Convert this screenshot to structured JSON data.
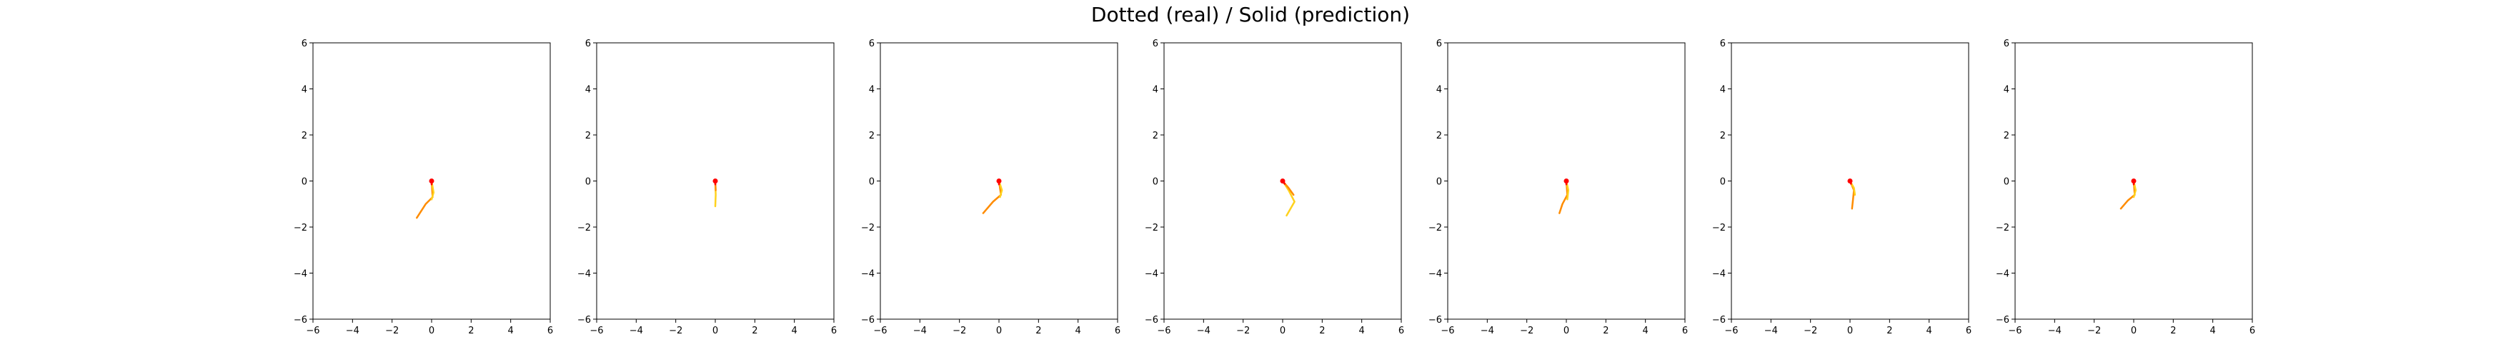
{
  "figure": {
    "suptitle": "Dotted (real) / Solid (prediction)"
  },
  "axes_defaults": {
    "xlim": [
      -6,
      6
    ],
    "ylim": [
      -6,
      6
    ],
    "xticks": [
      -6,
      -4,
      -2,
      0,
      2,
      4,
      6
    ],
    "yticks": [
      -6,
      -4,
      -2,
      0,
      2,
      4,
      6
    ],
    "grid": false
  },
  "chart_data": [
    {
      "type": "line",
      "xlim": [
        -6,
        6
      ],
      "ylim": [
        -6,
        6
      ],
      "series": [
        {
          "style": "solid",
          "color": "#ff8c00",
          "x": [
            0.0,
            0.05,
            -0.3,
            -0.75
          ],
          "y": [
            0.0,
            -0.7,
            -1.0,
            -1.6
          ]
        },
        {
          "style": "solid",
          "color": "#ffd21e",
          "x": [
            0.0,
            0.1,
            0.0
          ],
          "y": [
            0.0,
            -0.5,
            -0.8
          ]
        },
        {
          "style": "solid",
          "color": "#ff0000",
          "x": [
            0.0,
            0.0
          ],
          "y": [
            0.0,
            -0.15
          ]
        }
      ]
    },
    {
      "type": "line",
      "xlim": [
        -6,
        6
      ],
      "ylim": [
        -6,
        6
      ],
      "series": [
        {
          "style": "solid",
          "color": "#ffd21e",
          "x": [
            0.0,
            0.02,
            0.0
          ],
          "y": [
            0.0,
            -0.6,
            -1.1
          ]
        },
        {
          "style": "solid",
          "color": "#ff8c00",
          "x": [
            0.0,
            0.02
          ],
          "y": [
            0.0,
            -0.4
          ]
        },
        {
          "style": "solid",
          "color": "#ff0000",
          "x": [
            0.0,
            0.0
          ],
          "y": [
            0.0,
            -0.15
          ]
        }
      ]
    },
    {
      "type": "line",
      "xlim": [
        -6,
        6
      ],
      "ylim": [
        -6,
        6
      ],
      "series": [
        {
          "style": "solid",
          "color": "#ff8c00",
          "x": [
            0.0,
            0.1,
            -0.3,
            -0.8
          ],
          "y": [
            0.0,
            -0.6,
            -0.9,
            -1.4
          ]
        },
        {
          "style": "solid",
          "color": "#ffd21e",
          "x": [
            0.0,
            0.15,
            0.05
          ],
          "y": [
            0.0,
            -0.4,
            -0.7
          ]
        },
        {
          "style": "solid",
          "color": "#ff0000",
          "x": [
            0.0,
            0.0
          ],
          "y": [
            0.0,
            -0.15
          ]
        }
      ]
    },
    {
      "type": "line",
      "xlim": [
        -6,
        6
      ],
      "ylim": [
        -6,
        6
      ],
      "series": [
        {
          "style": "solid",
          "color": "#ffd21e",
          "x": [
            0.0,
            0.3,
            0.6,
            0.2
          ],
          "y": [
            0.0,
            -0.4,
            -0.9,
            -1.5
          ]
        },
        {
          "style": "solid",
          "color": "#ff8c00",
          "x": [
            0.0,
            0.3,
            0.55
          ],
          "y": [
            0.0,
            -0.3,
            -0.6
          ]
        },
        {
          "style": "solid",
          "color": "#ff0000",
          "x": [
            0.0,
            0.1
          ],
          "y": [
            0.0,
            -0.12
          ]
        }
      ]
    },
    {
      "type": "line",
      "xlim": [
        -6,
        6
      ],
      "ylim": [
        -6,
        6
      ],
      "series": [
        {
          "style": "solid",
          "color": "#ff8c00",
          "x": [
            0.0,
            0.05,
            -0.2,
            -0.35
          ],
          "y": [
            0.0,
            -0.6,
            -1.0,
            -1.4
          ]
        },
        {
          "style": "solid",
          "color": "#ffd21e",
          "x": [
            0.0,
            0.1,
            0.05
          ],
          "y": [
            0.0,
            -0.4,
            -0.8
          ]
        },
        {
          "style": "solid",
          "color": "#ff0000",
          "x": [
            0.0,
            0.0
          ],
          "y": [
            0.0,
            -0.15
          ]
        }
      ]
    },
    {
      "type": "line",
      "xlim": [
        -6,
        6
      ],
      "ylim": [
        -6,
        6
      ],
      "series": [
        {
          "style": "solid",
          "color": "#ff8c00",
          "x": [
            0.0,
            0.2,
            0.15,
            0.1
          ],
          "y": [
            0.0,
            -0.4,
            -0.8,
            -1.2
          ]
        },
        {
          "style": "solid",
          "color": "#ffd21e",
          "x": [
            0.0,
            0.2,
            0.25
          ],
          "y": [
            0.0,
            -0.3,
            -0.6
          ]
        },
        {
          "style": "solid",
          "color": "#ff0000",
          "x": [
            0.0,
            0.05
          ],
          "y": [
            0.0,
            -0.12
          ]
        }
      ]
    },
    {
      "type": "line",
      "xlim": [
        -6,
        6
      ],
      "ylim": [
        -6,
        6
      ],
      "series": [
        {
          "style": "solid",
          "color": "#ff8c00",
          "x": [
            0.0,
            0.05,
            -0.3,
            -0.65
          ],
          "y": [
            0.0,
            -0.6,
            -0.85,
            -1.2
          ]
        },
        {
          "style": "solid",
          "color": "#ffd21e",
          "x": [
            0.0,
            0.1,
            0.0
          ],
          "y": [
            0.0,
            -0.4,
            -0.7
          ]
        },
        {
          "style": "solid",
          "color": "#ff0000",
          "x": [
            0.0,
            0.0
          ],
          "y": [
            0.0,
            -0.15
          ]
        }
      ]
    }
  ]
}
